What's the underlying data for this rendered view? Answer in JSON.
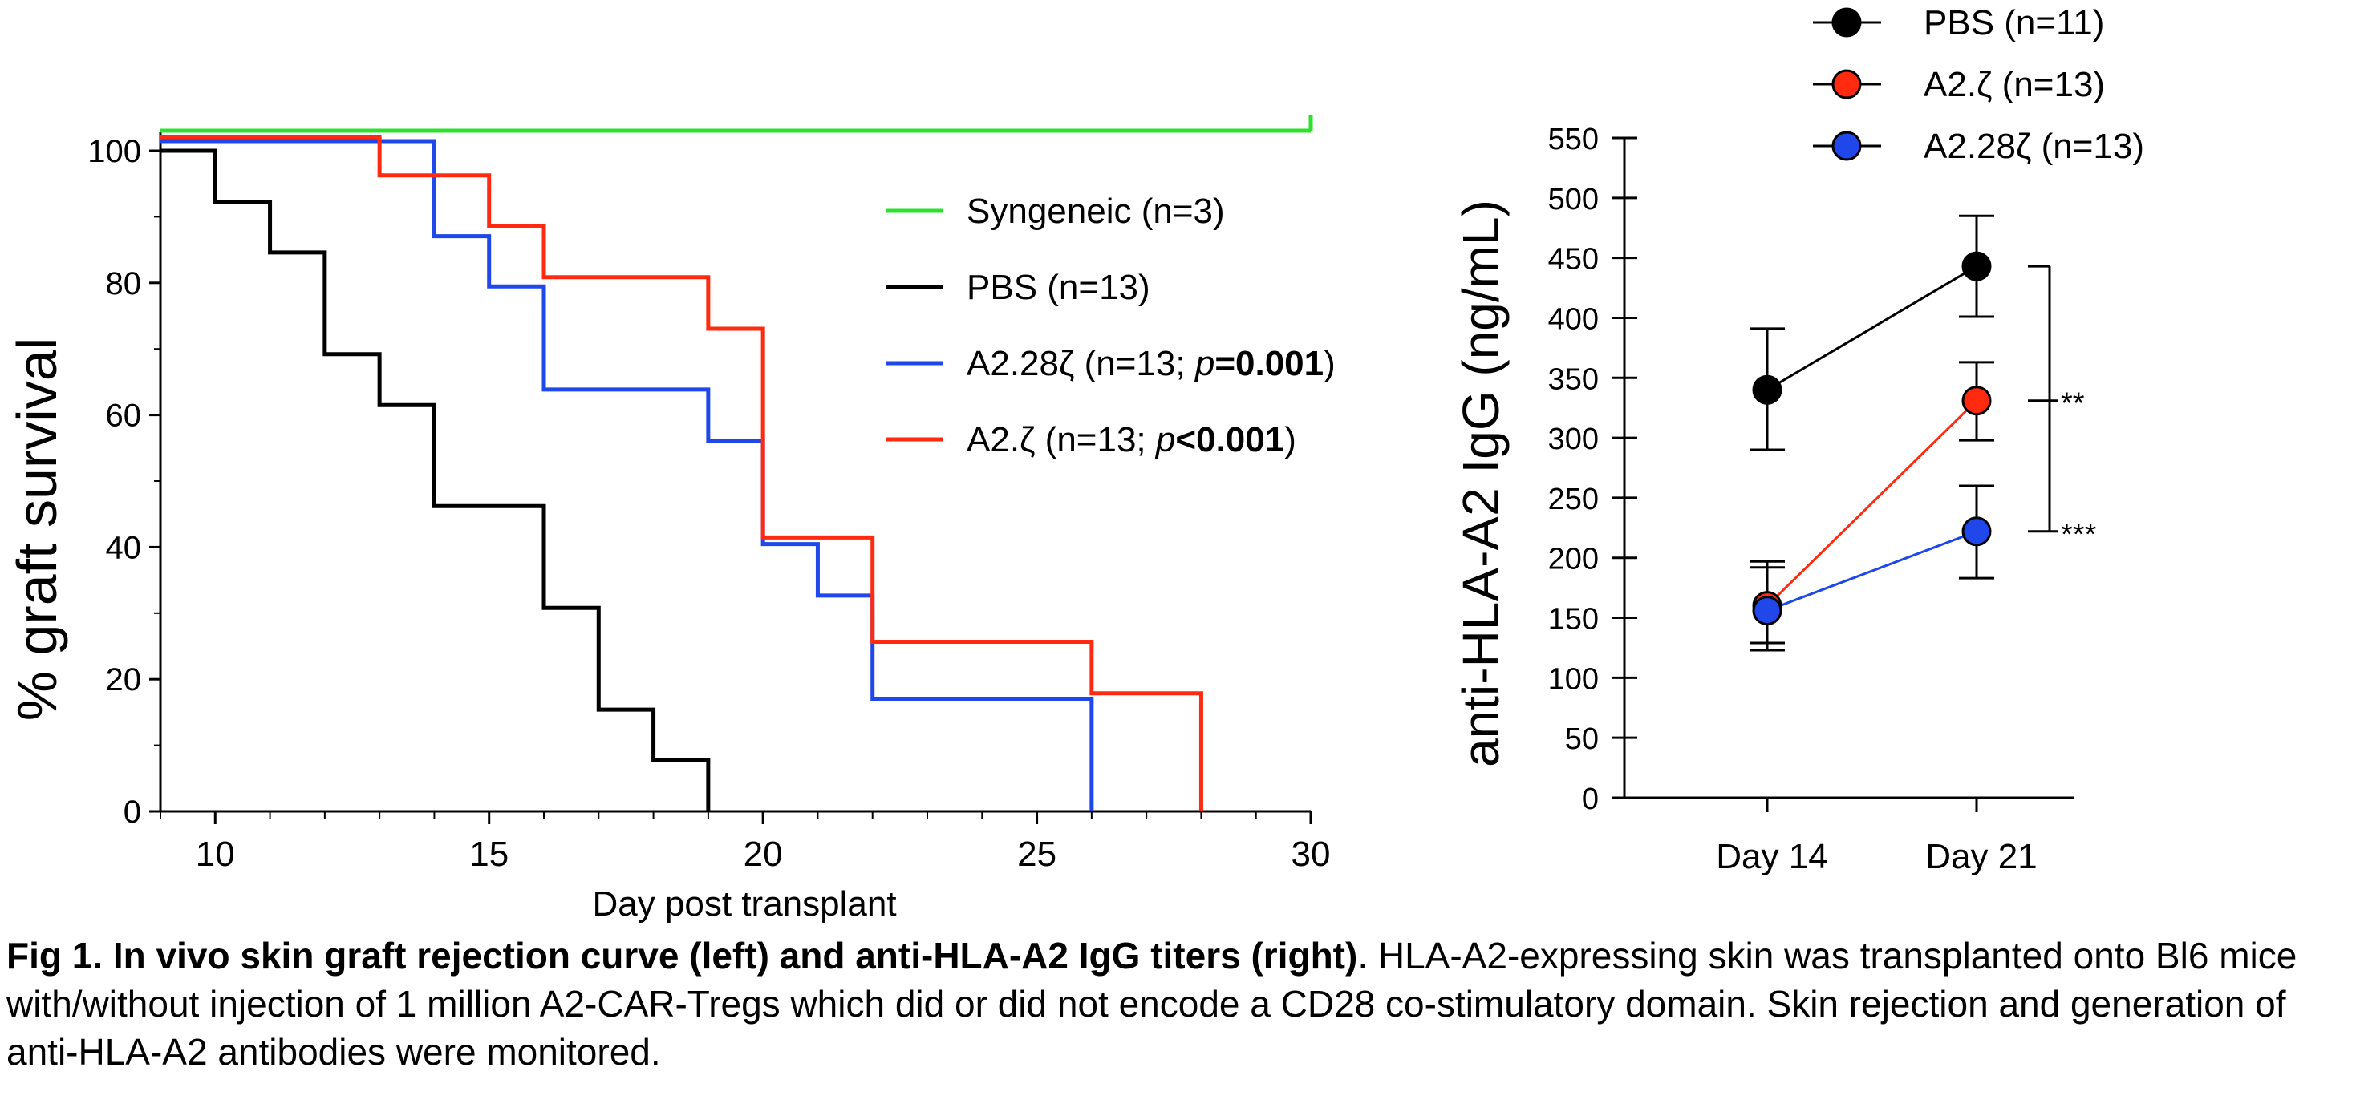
{
  "chart_data": [
    {
      "type": "line",
      "subtype": "kaplan-meier step",
      "xlabel": "Day post transplant",
      "ylabel": "% graft survival",
      "xlim": [
        9,
        30
      ],
      "ylim": [
        0,
        100
      ],
      "xticks": [
        10,
        15,
        20,
        25,
        30
      ],
      "yticks": [
        0,
        20,
        40,
        60,
        80,
        100
      ],
      "legend_position": "inside top-right",
      "series": [
        {
          "name": "Syngeneic (n=3)",
          "color": "#2ee02e",
          "x": [
            9,
            30
          ],
          "y": [
            100,
            100
          ]
        },
        {
          "name": "PBS (n=13)",
          "color": "#000000",
          "x": [
            9,
            10,
            11,
            12,
            13,
            14,
            16,
            17,
            18,
            19
          ],
          "y": [
            100,
            92.3,
            84.6,
            69.2,
            61.5,
            46.2,
            30.8,
            15.4,
            7.7,
            0
          ]
        },
        {
          "name": "A2.28ζ (n=13; p=0.001)",
          "color": "#1f47ea",
          "x": [
            9,
            14,
            15,
            16,
            19,
            20,
            21,
            22,
            26
          ],
          "y": [
            100,
            85.6,
            78.0,
            62.4,
            54.6,
            39.0,
            31.2,
            15.6,
            0
          ]
        },
        {
          "name": "A2.ζ (n=13; p<0.001)",
          "color": "#ff2a10",
          "x": [
            9,
            13,
            15,
            16,
            19,
            20,
            22,
            26,
            28
          ],
          "y": [
            100,
            94.2,
            86.5,
            78.8,
            71.0,
            39.4,
            23.6,
            15.8,
            0
          ]
        }
      ],
      "legend": [
        {
          "plain": "Syngeneic (n=3)",
          "p_italic": "",
          "p_bold": "",
          "close": "",
          "color": "#2ee02e"
        },
        {
          "plain": "PBS (n=13)",
          "p_italic": "",
          "p_bold": "",
          "close": "",
          "color": "#000000"
        },
        {
          "plain": "A2.28ζ (n=13; ",
          "p_italic": "p",
          "p_bold": "=0.001",
          "close": ")",
          "color": "#1f47ea"
        },
        {
          "plain": "A2.ζ (n=13; ",
          "p_italic": "p",
          "p_bold": "<0.001",
          "close": ")",
          "color": "#ff2a10"
        }
      ]
    },
    {
      "type": "line",
      "subtype": "mean with error bars",
      "ylabel": "anti-HLA-A2 IgG (ng/mL)",
      "categories": [
        "Day 14",
        "Day 21"
      ],
      "ylim": [
        0,
        550
      ],
      "yticks": [
        0,
        50,
        100,
        150,
        200,
        250,
        300,
        350,
        400,
        450,
        500,
        550
      ],
      "legend_position": "top-right",
      "series": [
        {
          "name": "PBS (n=11)",
          "color": "#000000",
          "values": [
            340,
            443
          ],
          "err_low": [
            290,
            401
          ],
          "err_high": [
            391,
            485
          ]
        },
        {
          "name": "A2.ζ (n=13)",
          "color": "#ff2a10",
          "values": [
            160,
            331
          ],
          "err_low": [
            129,
            298
          ],
          "err_high": [
            192,
            363
          ]
        },
        {
          "name": "A2.28ζ (n=13)",
          "color": "#1f47ea",
          "values": [
            156,
            222
          ],
          "err_low": [
            123,
            183
          ],
          "err_high": [
            197,
            260
          ]
        }
      ],
      "significance": [
        {
          "label": "**",
          "from": 443,
          "to": 331
        },
        {
          "label": "***",
          "from": 443,
          "to": 222
        }
      ]
    }
  ],
  "caption": {
    "lead": "Fig 1.",
    "title": " In vivo skin graft rejection curve (left) and anti-HLA-A2 IgG titers (right)",
    "body": ". HLA-A2-expressing skin was transplanted onto Bl6 mice with/without injection of 1 million A2-CAR-Tregs which did or did not encode a CD28 co-stimulatory domain. Skin rejection and generation of anti-HLA-A2 antibodies were monitored."
  }
}
